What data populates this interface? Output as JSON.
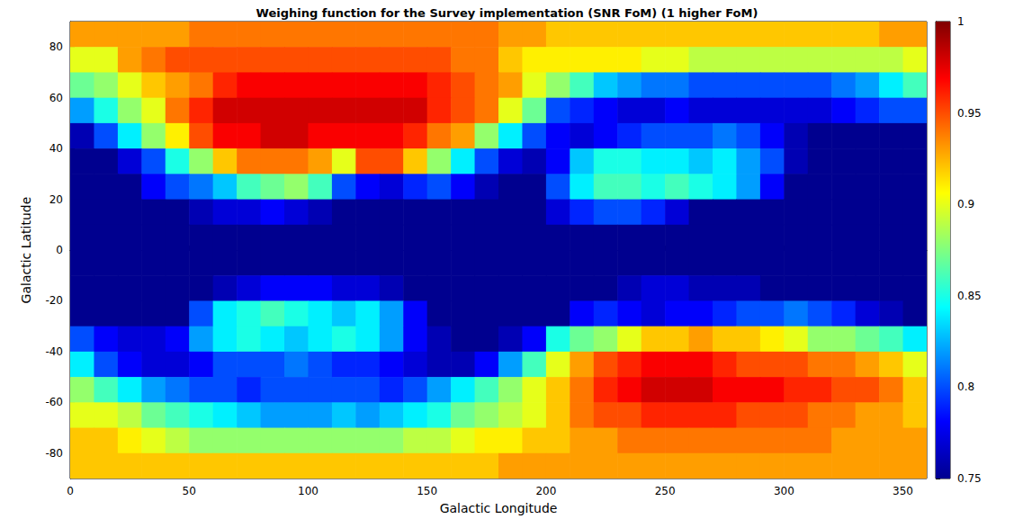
{
  "chart_data": {
    "type": "heatmap",
    "title": "Weighing function for the Survey implementation (SNR FoM) (1 higher FoM)",
    "x_label": "Galactic Longitude",
    "y_label": "Galactic Latitude",
    "xlim": [
      0,
      360
    ],
    "ylim": [
      -90,
      90
    ],
    "xticks": [
      0,
      50,
      100,
      150,
      200,
      250,
      300,
      350
    ],
    "yticks": [
      -80,
      -60,
      -40,
      -20,
      0,
      20,
      40,
      60,
      80
    ],
    "grid": false,
    "x": [
      5,
      15,
      25,
      35,
      45,
      55,
      65,
      75,
      85,
      95,
      105,
      115,
      125,
      135,
      145,
      155,
      165,
      175,
      185,
      195,
      205,
      215,
      225,
      235,
      245,
      255,
      265,
      275,
      285,
      295,
      305,
      315,
      325,
      335,
      345,
      355
    ],
    "y": [
      85,
      75,
      65,
      55,
      45,
      35,
      25,
      15,
      5,
      -5,
      -15,
      -25,
      -35,
      -45,
      -55,
      -65,
      -75,
      -85
    ],
    "values": [
      [
        0.93,
        0.93,
        0.93,
        0.93,
        0.93,
        0.94,
        0.94,
        0.94,
        0.94,
        0.94,
        0.94,
        0.94,
        0.94,
        0.94,
        0.94,
        0.94,
        0.94,
        0.94,
        0.93,
        0.93,
        0.92,
        0.92,
        0.92,
        0.92,
        0.92,
        0.92,
        0.92,
        0.92,
        0.92,
        0.92,
        0.92,
        0.92,
        0.92,
        0.92,
        0.93,
        0.93
      ],
      [
        0.9,
        0.9,
        0.93,
        0.94,
        0.95,
        0.95,
        0.95,
        0.95,
        0.95,
        0.95,
        0.95,
        0.95,
        0.95,
        0.95,
        0.95,
        0.95,
        0.94,
        0.94,
        0.92,
        0.91,
        0.91,
        0.91,
        0.91,
        0.91,
        0.9,
        0.9,
        0.89,
        0.89,
        0.89,
        0.89,
        0.89,
        0.89,
        0.89,
        0.89,
        0.89,
        0.9
      ],
      [
        0.87,
        0.88,
        0.9,
        0.92,
        0.93,
        0.94,
        0.96,
        0.97,
        0.97,
        0.97,
        0.97,
        0.97,
        0.97,
        0.97,
        0.97,
        0.96,
        0.95,
        0.94,
        0.93,
        0.9,
        0.88,
        0.86,
        0.83,
        0.82,
        0.81,
        0.81,
        0.8,
        0.8,
        0.8,
        0.8,
        0.8,
        0.8,
        0.81,
        0.82,
        0.84,
        0.86
      ],
      [
        0.82,
        0.85,
        0.88,
        0.9,
        0.94,
        0.96,
        0.98,
        0.98,
        0.98,
        0.98,
        0.98,
        0.98,
        0.98,
        0.98,
        0.98,
        0.96,
        0.95,
        0.94,
        0.9,
        0.87,
        0.8,
        0.79,
        0.78,
        0.77,
        0.77,
        0.78,
        0.77,
        0.77,
        0.77,
        0.77,
        0.77,
        0.77,
        0.78,
        0.79,
        0.8,
        0.8
      ],
      [
        0.76,
        0.8,
        0.84,
        0.88,
        0.91,
        0.95,
        0.97,
        0.97,
        0.98,
        0.98,
        0.97,
        0.97,
        0.97,
        0.97,
        0.96,
        0.94,
        0.93,
        0.88,
        0.84,
        0.8,
        0.78,
        0.77,
        0.78,
        0.79,
        0.8,
        0.8,
        0.8,
        0.81,
        0.8,
        0.78,
        0.76,
        0.75,
        0.75,
        0.75,
        0.75,
        0.75
      ],
      [
        0.75,
        0.75,
        0.77,
        0.8,
        0.85,
        0.88,
        0.92,
        0.94,
        0.94,
        0.94,
        0.93,
        0.9,
        0.95,
        0.95,
        0.92,
        0.88,
        0.84,
        0.8,
        0.77,
        0.76,
        0.78,
        0.83,
        0.85,
        0.85,
        0.84,
        0.84,
        0.83,
        0.84,
        0.82,
        0.8,
        0.76,
        0.75,
        0.75,
        0.75,
        0.75,
        0.75
      ],
      [
        0.75,
        0.75,
        0.75,
        0.78,
        0.8,
        0.81,
        0.83,
        0.86,
        0.87,
        0.88,
        0.86,
        0.8,
        0.78,
        0.77,
        0.79,
        0.8,
        0.78,
        0.76,
        0.75,
        0.75,
        0.8,
        0.84,
        0.86,
        0.86,
        0.85,
        0.86,
        0.85,
        0.84,
        0.82,
        0.78,
        0.75,
        0.75,
        0.75,
        0.75,
        0.75,
        0.75
      ],
      [
        0.75,
        0.75,
        0.75,
        0.75,
        0.75,
        0.76,
        0.77,
        0.77,
        0.78,
        0.77,
        0.76,
        0.75,
        0.75,
        0.75,
        0.75,
        0.75,
        0.75,
        0.75,
        0.75,
        0.75,
        0.77,
        0.79,
        0.8,
        0.8,
        0.79,
        0.77,
        0.75,
        0.75,
        0.75,
        0.75,
        0.75,
        0.75,
        0.75,
        0.75,
        0.75,
        0.75
      ],
      [
        0.75,
        0.75,
        0.75,
        0.75,
        0.75,
        0.75,
        0.75,
        0.75,
        0.75,
        0.75,
        0.75,
        0.75,
        0.75,
        0.75,
        0.75,
        0.75,
        0.75,
        0.75,
        0.75,
        0.75,
        0.75,
        0.75,
        0.75,
        0.75,
        0.75,
        0.75,
        0.75,
        0.75,
        0.75,
        0.75,
        0.75,
        0.75,
        0.75,
        0.75,
        0.75,
        0.75
      ],
      [
        0.75,
        0.75,
        0.75,
        0.75,
        0.75,
        0.75,
        0.75,
        0.75,
        0.75,
        0.75,
        0.75,
        0.75,
        0.75,
        0.75,
        0.75,
        0.75,
        0.75,
        0.75,
        0.75,
        0.75,
        0.75,
        0.75,
        0.75,
        0.75,
        0.75,
        0.75,
        0.75,
        0.75,
        0.75,
        0.75,
        0.75,
        0.75,
        0.75,
        0.75,
        0.75,
        0.75
      ],
      [
        0.75,
        0.75,
        0.75,
        0.75,
        0.75,
        0.75,
        0.76,
        0.77,
        0.78,
        0.78,
        0.78,
        0.77,
        0.77,
        0.76,
        0.75,
        0.75,
        0.75,
        0.75,
        0.75,
        0.75,
        0.75,
        0.75,
        0.75,
        0.76,
        0.77,
        0.77,
        0.76,
        0.76,
        0.76,
        0.75,
        0.75,
        0.75,
        0.75,
        0.75,
        0.75,
        0.75
      ],
      [
        0.75,
        0.75,
        0.75,
        0.75,
        0.75,
        0.8,
        0.84,
        0.85,
        0.86,
        0.85,
        0.84,
        0.83,
        0.84,
        0.82,
        0.78,
        0.75,
        0.75,
        0.75,
        0.75,
        0.75,
        0.75,
        0.78,
        0.79,
        0.78,
        0.77,
        0.78,
        0.78,
        0.79,
        0.8,
        0.8,
        0.81,
        0.8,
        0.79,
        0.77,
        0.76,
        0.75
      ],
      [
        0.8,
        0.78,
        0.77,
        0.77,
        0.78,
        0.82,
        0.84,
        0.85,
        0.84,
        0.83,
        0.84,
        0.85,
        0.84,
        0.82,
        0.78,
        0.76,
        0.75,
        0.75,
        0.76,
        0.78,
        0.85,
        0.87,
        0.88,
        0.9,
        0.92,
        0.92,
        0.93,
        0.92,
        0.92,
        0.91,
        0.9,
        0.88,
        0.88,
        0.87,
        0.86,
        0.84
      ],
      [
        0.84,
        0.8,
        0.78,
        0.77,
        0.77,
        0.78,
        0.8,
        0.8,
        0.8,
        0.81,
        0.8,
        0.79,
        0.79,
        0.78,
        0.77,
        0.76,
        0.76,
        0.78,
        0.82,
        0.86,
        0.9,
        0.93,
        0.95,
        0.96,
        0.97,
        0.97,
        0.97,
        0.96,
        0.95,
        0.95,
        0.95,
        0.94,
        0.94,
        0.93,
        0.92,
        0.9
      ],
      [
        0.88,
        0.86,
        0.84,
        0.82,
        0.81,
        0.8,
        0.8,
        0.79,
        0.8,
        0.8,
        0.8,
        0.8,
        0.8,
        0.79,
        0.8,
        0.82,
        0.84,
        0.86,
        0.88,
        0.9,
        0.92,
        0.94,
        0.96,
        0.97,
        0.98,
        0.98,
        0.98,
        0.97,
        0.97,
        0.97,
        0.96,
        0.96,
        0.95,
        0.95,
        0.94,
        0.92
      ],
      [
        0.9,
        0.9,
        0.89,
        0.87,
        0.86,
        0.85,
        0.84,
        0.83,
        0.82,
        0.82,
        0.82,
        0.83,
        0.82,
        0.83,
        0.84,
        0.85,
        0.87,
        0.88,
        0.89,
        0.9,
        0.92,
        0.94,
        0.95,
        0.95,
        0.96,
        0.96,
        0.96,
        0.96,
        0.95,
        0.95,
        0.95,
        0.94,
        0.94,
        0.93,
        0.93,
        0.92
      ],
      [
        0.92,
        0.92,
        0.91,
        0.9,
        0.89,
        0.88,
        0.88,
        0.88,
        0.88,
        0.88,
        0.88,
        0.88,
        0.88,
        0.88,
        0.89,
        0.89,
        0.9,
        0.91,
        0.91,
        0.92,
        0.92,
        0.93,
        0.93,
        0.94,
        0.94,
        0.94,
        0.94,
        0.94,
        0.94,
        0.94,
        0.94,
        0.94,
        0.93,
        0.93,
        0.93,
        0.93
      ],
      [
        0.92,
        0.92,
        0.92,
        0.92,
        0.92,
        0.92,
        0.92,
        0.92,
        0.92,
        0.92,
        0.92,
        0.92,
        0.92,
        0.92,
        0.92,
        0.92,
        0.92,
        0.92,
        0.93,
        0.93,
        0.93,
        0.93,
        0.93,
        0.93,
        0.93,
        0.93,
        0.93,
        0.93,
        0.93,
        0.93,
        0.93,
        0.93,
        0.93,
        0.93,
        0.93,
        0.93
      ]
    ],
    "colorbar": {
      "range": [
        0.75,
        1
      ],
      "ticks": [
        0.75,
        0.8,
        0.85,
        0.9,
        0.95,
        1
      ]
    }
  }
}
